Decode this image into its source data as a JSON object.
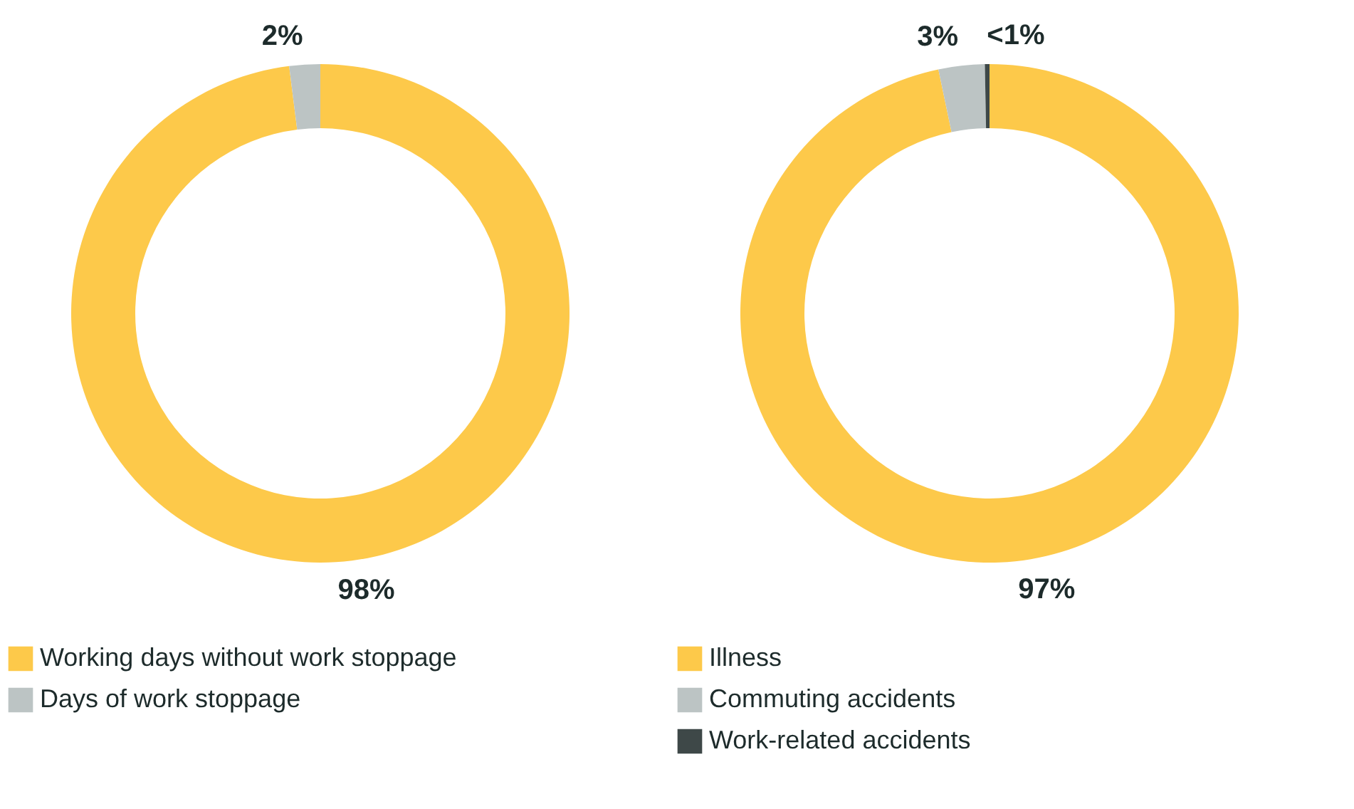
{
  "chart_data": [
    {
      "type": "donut",
      "categories": [
        "Working days without work stoppage",
        "Days of work stoppage"
      ],
      "values": [
        98,
        2
      ],
      "colors": [
        "#fdc94a",
        "#bcc4c4"
      ],
      "value_labels": [
        "98%",
        "2%"
      ],
      "legend": "bottom left"
    },
    {
      "type": "donut",
      "categories": [
        "Illness",
        "Commuting accidents",
        "Work-related accidents"
      ],
      "values": [
        97,
        3,
        0.3
      ],
      "value_labels": [
        "97%",
        "3%",
        "<1%"
      ],
      "colors": [
        "#fdc94a",
        "#bcc4c4",
        "#3e4848"
      ],
      "legend": "bottom left"
    }
  ]
}
